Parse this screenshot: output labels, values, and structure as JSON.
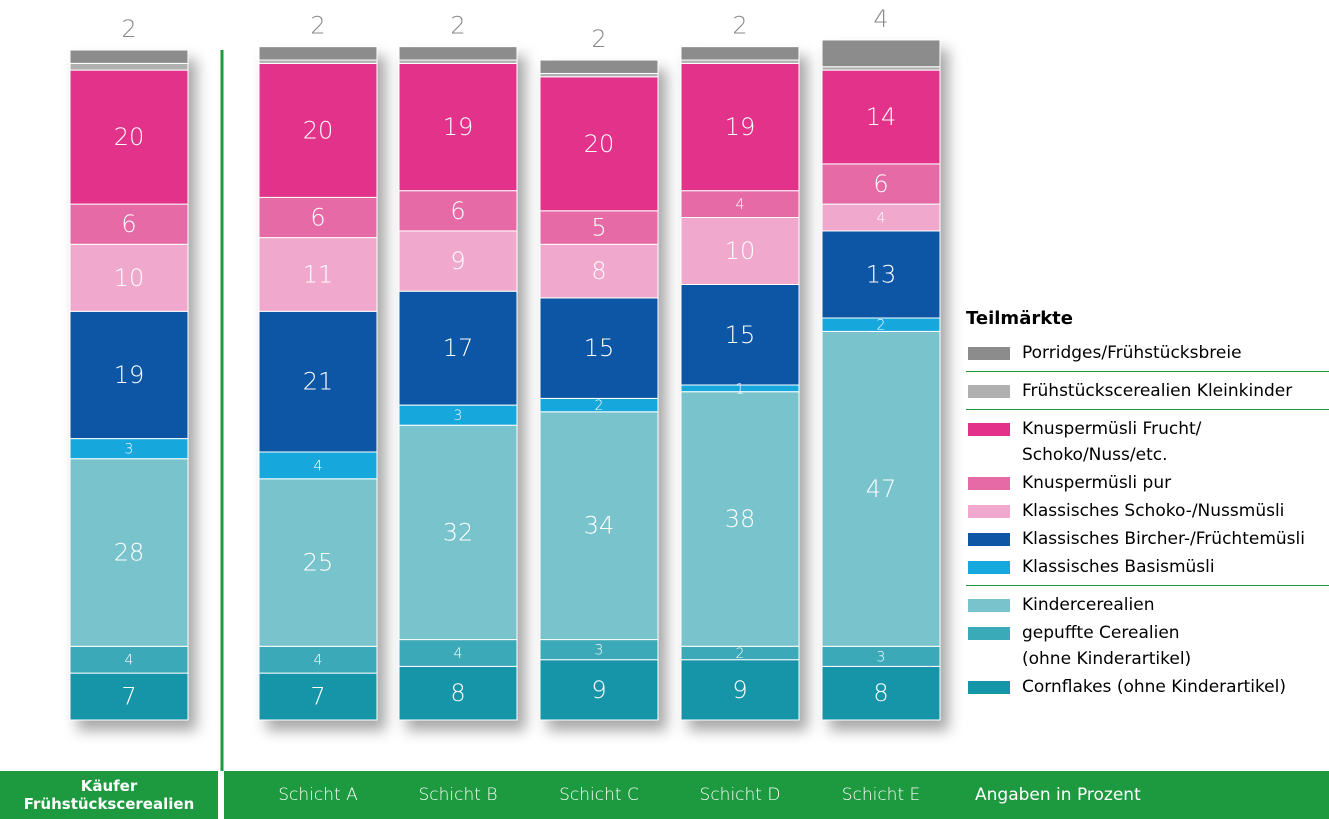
{
  "chart_data": {
    "type": "stacked_bar",
    "categories": [
      "Käufer\nFrühstückscerealien",
      "Schicht A",
      "Schicht B",
      "Schicht C",
      "Schicht D",
      "Schicht E"
    ],
    "legend_title": "Teilmärkte",
    "note": "Angaben in Prozent",
    "series": [
      {
        "name": "Cornflakes (ohne Kinderartikel)",
        "color": "#1595a8",
        "values": [
          7,
          7,
          8,
          9,
          9,
          8
        ]
      },
      {
        "name": "gepuffte Cerealien\n(ohne Kinderartikel)",
        "color": "#3aa9b8",
        "values": [
          4,
          4,
          4,
          3,
          2,
          3
        ]
      },
      {
        "name": "Kindercerealien",
        "color": "#79c3cc",
        "values": [
          28,
          25,
          32,
          34,
          38,
          47
        ]
      },
      {
        "name": "Klassisches Basismüsli",
        "color": "#14a8dc",
        "values": [
          3,
          4,
          3,
          2,
          1,
          2
        ]
      },
      {
        "name": "Klassisches Bircher-/Früchtemüsli",
        "color": "#0d56a6",
        "values": [
          19,
          21,
          17,
          15,
          15,
          13
        ]
      },
      {
        "name": "Klassisches Schoko-/Nussmüsli",
        "color": "#f0a8cc",
        "values": [
          10,
          11,
          9,
          8,
          10,
          4
        ]
      },
      {
        "name": "Knuspermüsli pur",
        "color": "#e56aa6",
        "values": [
          6,
          6,
          6,
          5,
          4,
          6
        ]
      },
      {
        "name": "Knuspermüsli Frucht/\nSchoko/Nuss/etc.",
        "color": "#e3318a",
        "values": [
          20,
          20,
          19,
          20,
          19,
          14
        ]
      },
      {
        "name": "Frühstückscerealien Kleinkinder",
        "color": "#b0b0b0",
        "values": [
          1,
          0.5,
          0.5,
          0.5,
          0.5,
          0.5
        ],
        "value_labels": [
          null,
          null,
          null,
          null,
          null,
          null
        ]
      },
      {
        "name": "Porridges/Frühstücksbreie",
        "color": "#8c8c8c",
        "values": [
          2,
          2,
          2,
          2,
          2,
          4
        ]
      }
    ]
  }
}
